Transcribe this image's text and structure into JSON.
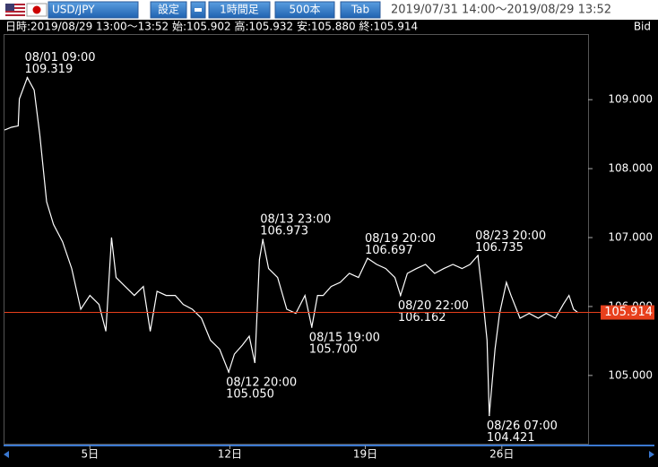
{
  "toolbar": {
    "pair": "USD/JPY",
    "buttons": [
      "設定",
      "1時間足",
      "500本",
      "Tab"
    ],
    "range": "2019/07/31 14:00～2019/08/29 13:52"
  },
  "info": {
    "text": "日時:2019/08/29 13:00～13:52 始:105.902 高:105.932 安:105.880 終:105.914",
    "side": "Bid"
  },
  "chart_data": {
    "type": "line",
    "color": "#ffffff",
    "x": [
      0,
      6,
      12,
      13,
      20,
      26,
      31,
      37,
      43,
      51,
      59,
      67,
      75,
      83,
      89,
      94,
      98,
      106,
      114,
      122,
      128,
      134,
      142,
      150,
      157,
      165,
      173,
      181,
      189,
      197,
      202,
      209,
      215,
      220,
      224,
      227,
      232,
      240,
      248,
      256,
      264,
      270,
      275,
      280,
      287,
      295,
      303,
      311,
      319,
      327,
      335,
      343,
      348,
      354,
      362,
      370,
      378,
      386,
      394,
      402,
      409,
      416,
      420,
      424,
      426,
      431,
      435,
      441,
      445,
      453,
      461,
      469,
      476,
      484,
      491,
      496,
      500,
      504
    ],
    "values": [
      108.56,
      108.6,
      108.62,
      109.01,
      109.32,
      109.14,
      108.49,
      107.52,
      107.19,
      106.94,
      106.55,
      105.96,
      106.16,
      106.03,
      105.64,
      107.0,
      106.42,
      106.29,
      106.16,
      106.29,
      105.64,
      106.22,
      106.16,
      106.16,
      106.03,
      105.96,
      105.83,
      105.51,
      105.38,
      105.05,
      105.31,
      105.44,
      105.57,
      105.18,
      106.68,
      106.97,
      106.55,
      106.42,
      105.96,
      105.9,
      106.16,
      105.7,
      106.16,
      106.16,
      106.29,
      106.35,
      106.48,
      106.42,
      106.7,
      106.61,
      106.55,
      106.42,
      106.16,
      106.48,
      106.55,
      106.61,
      106.48,
      106.55,
      106.61,
      106.55,
      106.61,
      106.74,
      106.16,
      105.51,
      104.42,
      105.38,
      105.9,
      106.35,
      106.16,
      105.83,
      105.9,
      105.83,
      105.9,
      105.83,
      106.03,
      106.16,
      105.96,
      105.91
    ],
    "xlim": [
      -4,
      512
    ],
    "xticks": [
      {
        "value": 75,
        "label": "5日"
      },
      {
        "value": 198,
        "label": "12日"
      },
      {
        "value": 317,
        "label": "19日"
      },
      {
        "value": 437,
        "label": "26日"
      }
    ],
    "ylim": [
      104.01,
      110.16
    ],
    "yticks": [
      {
        "value": 105,
        "label": "105.000"
      },
      {
        "value": 106,
        "label": "106.000"
      },
      {
        "value": 107,
        "label": "107.000"
      },
      {
        "value": 108,
        "label": "108.000"
      },
      {
        "value": 109,
        "label": "109.000"
      }
    ],
    "current": {
      "value": 105.914,
      "color": "#e8401c"
    },
    "annotations": [
      {
        "time": "08/01 09:00",
        "x": 20,
        "value": 109.319,
        "label": "109.319"
      },
      {
        "time": "08/12 20:00",
        "x": 197,
        "value": 105.05,
        "label": "105.050"
      },
      {
        "time": "08/13 23:00",
        "x": 227,
        "value": 106.973,
        "label": "106.973"
      },
      {
        "time": "08/15 19:00",
        "x": 270,
        "value": 105.7,
        "label": "105.700"
      },
      {
        "time": "08/19 20:00",
        "x": 319,
        "value": 106.697,
        "label": "106.697"
      },
      {
        "time": "08/20 22:00",
        "x": 348,
        "value": 106.162,
        "label": "106.162"
      },
      {
        "time": "08/23 20:00",
        "x": 416,
        "value": 106.735,
        "label": "106.735"
      },
      {
        "time": "08/26 07:00",
        "x": 426,
        "value": 104.421,
        "label": "104.421"
      }
    ]
  }
}
